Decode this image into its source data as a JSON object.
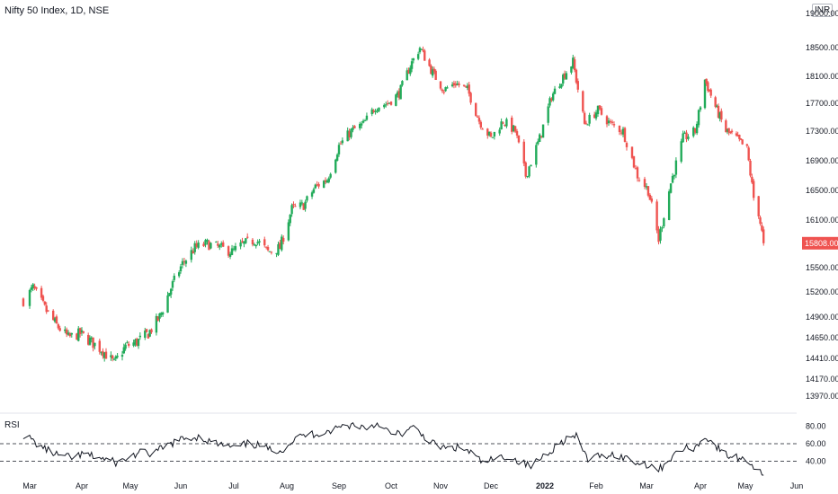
{
  "header": {
    "title": "Nifty 50 Index, 1D, NSE",
    "currency": "INR"
  },
  "colors": {
    "up": "#26a69a",
    "up_draw": "#22ab5a",
    "down": "#ef5350",
    "rsi_line": "#131722",
    "axis": "#131722",
    "last_price_bg": "#ef5350"
  },
  "chart_data": [
    {
      "type": "candlestick",
      "title": "Nifty 50 Index, 1D, NSE",
      "y_ticks": [
        19000,
        18500,
        18100,
        17700,
        17300,
        16900,
        16500,
        16100,
        15500,
        15200,
        14900,
        14650,
        14410,
        14170,
        13970
      ],
      "ylim": [
        13950,
        19050
      ],
      "x_ticks": [
        "Mar",
        "Apr",
        "May",
        "Jun",
        "Jul",
        "Aug",
        "Sep",
        "Oct",
        "Nov",
        "Dec",
        "2022",
        "Feb",
        "Mar",
        "Apr",
        "May",
        "Jun"
      ],
      "last_price": 15808,
      "last_price_label": "15808.00",
      "path": [
        [
          "2021-02-26",
          15100
        ],
        [
          "2021-03-03",
          15250
        ],
        [
          "2021-03-10",
          15000
        ],
        [
          "2021-03-17",
          14800
        ],
        [
          "2021-03-24",
          14650
        ],
        [
          "2021-03-31",
          14700
        ],
        [
          "2021-04-07",
          14600
        ],
        [
          "2021-04-14",
          14500
        ],
        [
          "2021-04-21",
          14350
        ],
        [
          "2021-04-28",
          14550
        ],
        [
          "2021-05-05",
          14600
        ],
        [
          "2021-05-12",
          14700
        ],
        [
          "2021-05-19",
          14900
        ],
        [
          "2021-05-26",
          15250
        ],
        [
          "2021-06-02",
          15550
        ],
        [
          "2021-06-09",
          15750
        ],
        [
          "2021-06-16",
          15800
        ],
        [
          "2021-06-23",
          15750
        ],
        [
          "2021-06-30",
          15700
        ],
        [
          "2021-07-07",
          15800
        ],
        [
          "2021-07-14",
          15850
        ],
        [
          "2021-07-21",
          15700
        ],
        [
          "2021-07-28",
          15750
        ],
        [
          "2021-08-04",
          16250
        ],
        [
          "2021-08-11",
          16300
        ],
        [
          "2021-08-18",
          16550
        ],
        [
          "2021-08-25",
          16650
        ],
        [
          "2021-09-01",
          17100
        ],
        [
          "2021-09-08",
          17300
        ],
        [
          "2021-09-15",
          17400
        ],
        [
          "2021-09-22",
          17650
        ],
        [
          "2021-09-29",
          17700
        ],
        [
          "2021-10-06",
          17850
        ],
        [
          "2021-10-13",
          18250
        ],
        [
          "2021-10-19",
          18500
        ],
        [
          "2021-10-27",
          18150
        ],
        [
          "2021-11-03",
          17900
        ],
        [
          "2021-11-10",
          18000
        ],
        [
          "2021-11-17",
          17900
        ],
        [
          "2021-11-24",
          17450
        ],
        [
          "2021-12-01",
          17200
        ],
        [
          "2021-12-08",
          17450
        ],
        [
          "2021-12-15",
          17300
        ],
        [
          "2021-12-21",
          16700
        ],
        [
          "2021-12-29",
          17200
        ],
        [
          "2022-01-05",
          17800
        ],
        [
          "2022-01-12",
          18100
        ],
        [
          "2022-01-18",
          18300
        ],
        [
          "2022-01-25",
          17400
        ],
        [
          "2022-02-02",
          17600
        ],
        [
          "2022-02-09",
          17400
        ],
        [
          "2022-02-16",
          17300
        ],
        [
          "2022-02-24",
          16700
        ],
        [
          "2022-03-02",
          16500
        ],
        [
          "2022-03-08",
          15850
        ],
        [
          "2022-03-15",
          16600
        ],
        [
          "2022-03-22",
          17200
        ],
        [
          "2022-03-29",
          17300
        ],
        [
          "2022-04-04",
          18050
        ],
        [
          "2022-04-11",
          17650
        ],
        [
          "2022-04-18",
          17300
        ],
        [
          "2022-04-25",
          17200
        ],
        [
          "2022-05-02",
          17050
        ],
        [
          "2022-05-06",
          16400
        ],
        [
          "2022-05-09",
          16200
        ],
        [
          "2022-05-12",
          15808
        ]
      ]
    },
    {
      "type": "line",
      "title": "RSI",
      "y_ticks": [
        "80.00",
        "60.00",
        "40.00"
      ],
      "ylim": [
        20,
        90
      ],
      "bands": [
        60,
        40
      ],
      "path": [
        [
          "2021-02-26",
          70
        ],
        [
          "2021-03-05",
          60
        ],
        [
          "2021-03-12",
          52
        ],
        [
          "2021-03-19",
          46
        ],
        [
          "2021-03-26",
          44
        ],
        [
          "2021-04-02",
          48
        ],
        [
          "2021-04-09",
          45
        ],
        [
          "2021-04-16",
          42
        ],
        [
          "2021-04-23",
          38
        ],
        [
          "2021-04-30",
          44
        ],
        [
          "2021-05-07",
          50
        ],
        [
          "2021-05-14",
          48
        ],
        [
          "2021-05-21",
          55
        ],
        [
          "2021-05-28",
          62
        ],
        [
          "2021-06-04",
          66
        ],
        [
          "2021-06-11",
          68
        ],
        [
          "2021-06-18",
          62
        ],
        [
          "2021-06-25",
          58
        ],
        [
          "2021-07-02",
          55
        ],
        [
          "2021-07-09",
          60
        ],
        [
          "2021-07-16",
          58
        ],
        [
          "2021-07-23",
          52
        ],
        [
          "2021-07-30",
          54
        ],
        [
          "2021-08-06",
          66
        ],
        [
          "2021-08-13",
          70
        ],
        [
          "2021-08-20",
          72
        ],
        [
          "2021-08-27",
          75
        ],
        [
          "2021-09-03",
          80
        ],
        [
          "2021-09-10",
          82
        ],
        [
          "2021-09-17",
          78
        ],
        [
          "2021-09-24",
          84
        ],
        [
          "2021-10-01",
          70
        ],
        [
          "2021-10-08",
          72
        ],
        [
          "2021-10-15",
          78
        ],
        [
          "2021-10-22",
          68
        ],
        [
          "2021-10-29",
          58
        ],
        [
          "2021-11-05",
          54
        ],
        [
          "2021-11-12",
          56
        ],
        [
          "2021-11-19",
          50
        ],
        [
          "2021-11-26",
          38
        ],
        [
          "2021-12-03",
          42
        ],
        [
          "2021-12-10",
          46
        ],
        [
          "2021-12-17",
          40
        ],
        [
          "2021-12-24",
          34
        ],
        [
          "2021-12-31",
          46
        ],
        [
          "2022-01-07",
          56
        ],
        [
          "2022-01-14",
          66
        ],
        [
          "2022-01-20",
          68
        ],
        [
          "2022-01-27",
          42
        ],
        [
          "2022-02-03",
          46
        ],
        [
          "2022-02-10",
          48
        ],
        [
          "2022-02-17",
          44
        ],
        [
          "2022-02-24",
          38
        ],
        [
          "2022-03-03",
          36
        ],
        [
          "2022-03-08",
          30
        ],
        [
          "2022-03-15",
          44
        ],
        [
          "2022-03-22",
          54
        ],
        [
          "2022-03-29",
          56
        ],
        [
          "2022-04-05",
          68
        ],
        [
          "2022-04-12",
          56
        ],
        [
          "2022-04-19",
          46
        ],
        [
          "2022-04-26",
          44
        ],
        [
          "2022-05-03",
          40
        ],
        [
          "2022-05-06",
          34
        ],
        [
          "2022-05-10",
          30
        ],
        [
          "2022-05-12",
          24
        ]
      ]
    }
  ]
}
